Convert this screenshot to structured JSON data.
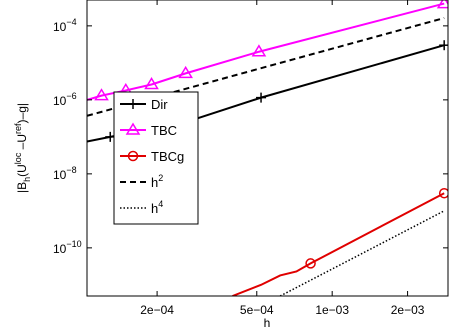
{
  "chart_data": {
    "type": "line",
    "title": "",
    "xlabel": "h",
    "ylabel": "|B_h(U^loc − U^ref) − g|",
    "xscale": "log",
    "yscale": "log",
    "xlim": [
      0.000105,
      0.0029
    ],
    "ylim": [
      5e-12,
      0.0005
    ],
    "x_ticks": [
      {
        "value": 0.0002,
        "label": "2e−04"
      },
      {
        "value": 0.0005,
        "label": "5e−04"
      },
      {
        "value": 0.001,
        "label": "1e−03"
      },
      {
        "value": 0.002,
        "label": "2e−03"
      }
    ],
    "y_ticks": [
      {
        "value": 1e-10,
        "mantissa": "10",
        "exponent": "−10"
      },
      {
        "value": 1e-08,
        "mantissa": "10",
        "exponent": "−8"
      },
      {
        "value": 1e-06,
        "mantissa": "10",
        "exponent": "−6"
      },
      {
        "value": 0.0001,
        "mantissa": "10",
        "exponent": "−4"
      }
    ],
    "legend_position": "left-middle",
    "series": [
      {
        "name": "Dir",
        "color": "#000000",
        "dash": "solid",
        "marker": "plus",
        "points": [
          [
            0.000105,
            7.5e-08
          ],
          [
            0.00013,
            1e-07
          ],
          [
            0.00026,
            2.5e-07
          ],
          [
            0.00052,
            1.15e-06
          ],
          [
            0.0028,
            3e-05
          ]
        ],
        "marker_points": [
          [
            0.00013,
            1e-07
          ],
          [
            0.00052,
            1.15e-06
          ],
          [
            0.0028,
            3e-05
          ]
        ]
      },
      {
        "name": "TBC",
        "color": "#ff00ff",
        "dash": "solid",
        "marker": "triangle",
        "points": [
          [
            0.000105,
            1e-06
          ],
          [
            0.00012,
            1.3e-06
          ],
          [
            0.00015,
            1.8e-06
          ],
          [
            0.00019,
            2.6e-06
          ],
          [
            0.00026,
            5.2e-06
          ],
          [
            0.00051,
            2e-05
          ],
          [
            0.0028,
            0.0004
          ]
        ],
        "marker_points": [
          [
            0.00012,
            1.3e-06
          ],
          [
            0.00015,
            1.8e-06
          ],
          [
            0.00019,
            2.6e-06
          ],
          [
            0.00026,
            5.2e-06
          ],
          [
            0.00051,
            2e-05
          ],
          [
            0.0028,
            0.0004
          ]
        ]
      },
      {
        "name": "TBCg",
        "color": "#e00000",
        "dash": "solid",
        "marker": "circle",
        "points": [
          [
            0.0004,
            5e-12
          ],
          [
            0.00052,
            1e-11
          ],
          [
            0.00062,
            1.8e-11
          ],
          [
            0.00072,
            2.3e-11
          ],
          [
            0.00082,
            3.8e-11
          ],
          [
            0.0028,
            3e-09
          ]
        ],
        "marker_points": [
          [
            0.00082,
            3.8e-11
          ],
          [
            0.0028,
            3e-09
          ]
        ]
      },
      {
        "name": "h^2",
        "color": "#000000",
        "dash": "dashed",
        "marker": "none",
        "points": [
          [
            0.000105,
            3.7e-07
          ],
          [
            0.0028,
            0.000163
          ]
        ],
        "marker_points": []
      },
      {
        "name": "h^4",
        "color": "#000000",
        "dash": "dotted",
        "marker": "none",
        "points": [
          [
            0.00062,
            5e-12
          ],
          [
            0.0028,
            1e-09
          ]
        ],
        "marker_points": []
      }
    ],
    "legend": [
      {
        "label": "Dir",
        "base": "Dir",
        "sup": ""
      },
      {
        "label": "TBC",
        "base": "TBC",
        "sup": ""
      },
      {
        "label": "TBCg",
        "base": "TBCg",
        "sup": ""
      },
      {
        "label": "h^2",
        "base": "h",
        "sup": "2"
      },
      {
        "label": "h^4",
        "base": "h",
        "sup": "4"
      }
    ]
  }
}
